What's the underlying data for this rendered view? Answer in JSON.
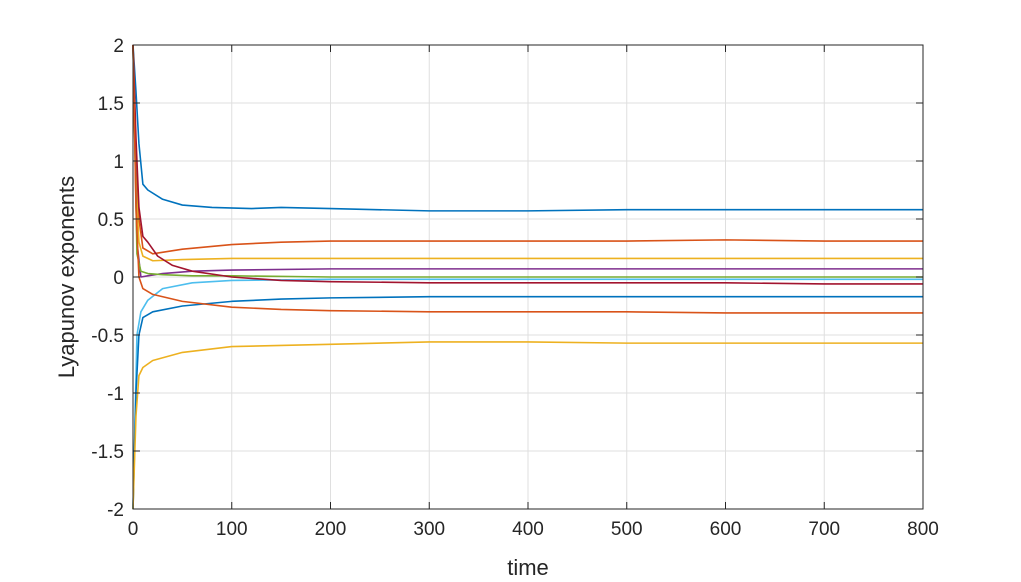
{
  "chart_data": {
    "type": "line",
    "title": "",
    "xlabel": "time",
    "ylabel": "Lyapunov exponents",
    "xlim": [
      0,
      800
    ],
    "ylim": [
      -2,
      2
    ],
    "xticks": [
      0,
      100,
      200,
      300,
      400,
      500,
      600,
      700,
      800
    ],
    "yticks": [
      -2,
      -1.5,
      -1,
      -0.5,
      0,
      0.5,
      1,
      1.5,
      2
    ],
    "grid": true,
    "legend": "none",
    "series": [
      {
        "color": "#0072BD",
        "points": [
          [
            0,
            2
          ],
          [
            3,
            1.6
          ],
          [
            6,
            1.15
          ],
          [
            10,
            0.8
          ],
          [
            15,
            0.75
          ],
          [
            30,
            0.67
          ],
          [
            50,
            0.62
          ],
          [
            80,
            0.6
          ],
          [
            120,
            0.59
          ],
          [
            150,
            0.6
          ],
          [
            200,
            0.59
          ],
          [
            300,
            0.57
          ],
          [
            400,
            0.57
          ],
          [
            500,
            0.58
          ],
          [
            600,
            0.58
          ],
          [
            700,
            0.58
          ],
          [
            800,
            0.58
          ]
        ]
      },
      {
        "color": "#D95319",
        "points": [
          [
            0,
            2
          ],
          [
            3,
            1.0
          ],
          [
            6,
            0.5
          ],
          [
            10,
            0.25
          ],
          [
            20,
            0.2
          ],
          [
            50,
            0.24
          ],
          [
            100,
            0.28
          ],
          [
            150,
            0.3
          ],
          [
            200,
            0.31
          ],
          [
            300,
            0.31
          ],
          [
            400,
            0.31
          ],
          [
            500,
            0.31
          ],
          [
            600,
            0.32
          ],
          [
            700,
            0.31
          ],
          [
            800,
            0.31
          ]
        ]
      },
      {
        "color": "#EDB120",
        "points": [
          [
            0,
            2
          ],
          [
            3,
            0.8
          ],
          [
            6,
            0.3
          ],
          [
            10,
            0.18
          ],
          [
            20,
            0.14
          ],
          [
            50,
            0.15
          ],
          [
            100,
            0.16
          ],
          [
            200,
            0.16
          ],
          [
            300,
            0.16
          ],
          [
            400,
            0.16
          ],
          [
            500,
            0.16
          ],
          [
            600,
            0.16
          ],
          [
            700,
            0.16
          ],
          [
            800,
            0.16
          ]
        ]
      },
      {
        "color": "#7E2F8E",
        "points": [
          [
            0,
            2
          ],
          [
            4,
            0.3
          ],
          [
            8,
            0.0
          ],
          [
            15,
            0.01
          ],
          [
            30,
            0.03
          ],
          [
            60,
            0.05
          ],
          [
            100,
            0.06
          ],
          [
            200,
            0.07
          ],
          [
            300,
            0.07
          ],
          [
            400,
            0.07
          ],
          [
            500,
            0.07
          ],
          [
            600,
            0.07
          ],
          [
            700,
            0.07
          ],
          [
            800,
            0.07
          ]
        ]
      },
      {
        "color": "#77AC30",
        "points": [
          [
            0,
            2
          ],
          [
            4,
            0.2
          ],
          [
            8,
            0.05
          ],
          [
            15,
            0.03
          ],
          [
            30,
            0.02
          ],
          [
            60,
            0.01
          ],
          [
            100,
            0.01
          ],
          [
            200,
            0.0
          ],
          [
            300,
            0.0
          ],
          [
            400,
            0.0
          ],
          [
            500,
            0.0
          ],
          [
            600,
            0.0
          ],
          [
            700,
            0.0
          ],
          [
            800,
            0.0
          ]
        ]
      },
      {
        "color": "#4DBEEE",
        "points": [
          [
            0,
            -2
          ],
          [
            4,
            -0.5
          ],
          [
            8,
            -0.3
          ],
          [
            15,
            -0.2
          ],
          [
            30,
            -0.1
          ],
          [
            60,
            -0.05
          ],
          [
            100,
            -0.03
          ],
          [
            200,
            -0.02
          ],
          [
            300,
            -0.02
          ],
          [
            400,
            -0.02
          ],
          [
            500,
            -0.02
          ],
          [
            600,
            -0.02
          ],
          [
            700,
            -0.02
          ],
          [
            800,
            -0.02
          ]
        ]
      },
      {
        "color": "#A2142F",
        "points": [
          [
            0,
            2
          ],
          [
            3,
            1.2
          ],
          [
            6,
            0.6
          ],
          [
            10,
            0.35
          ],
          [
            15,
            0.3
          ],
          [
            25,
            0.18
          ],
          [
            40,
            0.1
          ],
          [
            60,
            0.05
          ],
          [
            100,
            0.0
          ],
          [
            150,
            -0.03
          ],
          [
            200,
            -0.04
          ],
          [
            300,
            -0.05
          ],
          [
            400,
            -0.05
          ],
          [
            500,
            -0.05
          ],
          [
            600,
            -0.05
          ],
          [
            700,
            -0.06
          ],
          [
            800,
            -0.06
          ]
        ]
      },
      {
        "color": "#0072BD",
        "points": [
          [
            0,
            -2
          ],
          [
            3,
            -1.0
          ],
          [
            6,
            -0.5
          ],
          [
            10,
            -0.35
          ],
          [
            20,
            -0.3
          ],
          [
            50,
            -0.25
          ],
          [
            100,
            -0.21
          ],
          [
            150,
            -0.19
          ],
          [
            200,
            -0.18
          ],
          [
            300,
            -0.17
          ],
          [
            400,
            -0.17
          ],
          [
            500,
            -0.17
          ],
          [
            600,
            -0.17
          ],
          [
            700,
            -0.17
          ],
          [
            800,
            -0.17
          ]
        ]
      },
      {
        "color": "#D95319",
        "points": [
          [
            0,
            2
          ],
          [
            3,
            0.6
          ],
          [
            6,
            0.0
          ],
          [
            10,
            -0.1
          ],
          [
            20,
            -0.15
          ],
          [
            50,
            -0.21
          ],
          [
            100,
            -0.26
          ],
          [
            150,
            -0.28
          ],
          [
            200,
            -0.29
          ],
          [
            300,
            -0.3
          ],
          [
            400,
            -0.3
          ],
          [
            500,
            -0.3
          ],
          [
            600,
            -0.31
          ],
          [
            700,
            -0.31
          ],
          [
            800,
            -0.31
          ]
        ]
      },
      {
        "color": "#EDB120",
        "points": [
          [
            0,
            -2
          ],
          [
            3,
            -1.2
          ],
          [
            6,
            -0.85
          ],
          [
            10,
            -0.78
          ],
          [
            20,
            -0.72
          ],
          [
            50,
            -0.65
          ],
          [
            100,
            -0.6
          ],
          [
            150,
            -0.59
          ],
          [
            200,
            -0.58
          ],
          [
            300,
            -0.56
          ],
          [
            400,
            -0.56
          ],
          [
            500,
            -0.57
          ],
          [
            600,
            -0.57
          ],
          [
            700,
            -0.57
          ],
          [
            800,
            -0.57
          ]
        ]
      }
    ]
  }
}
